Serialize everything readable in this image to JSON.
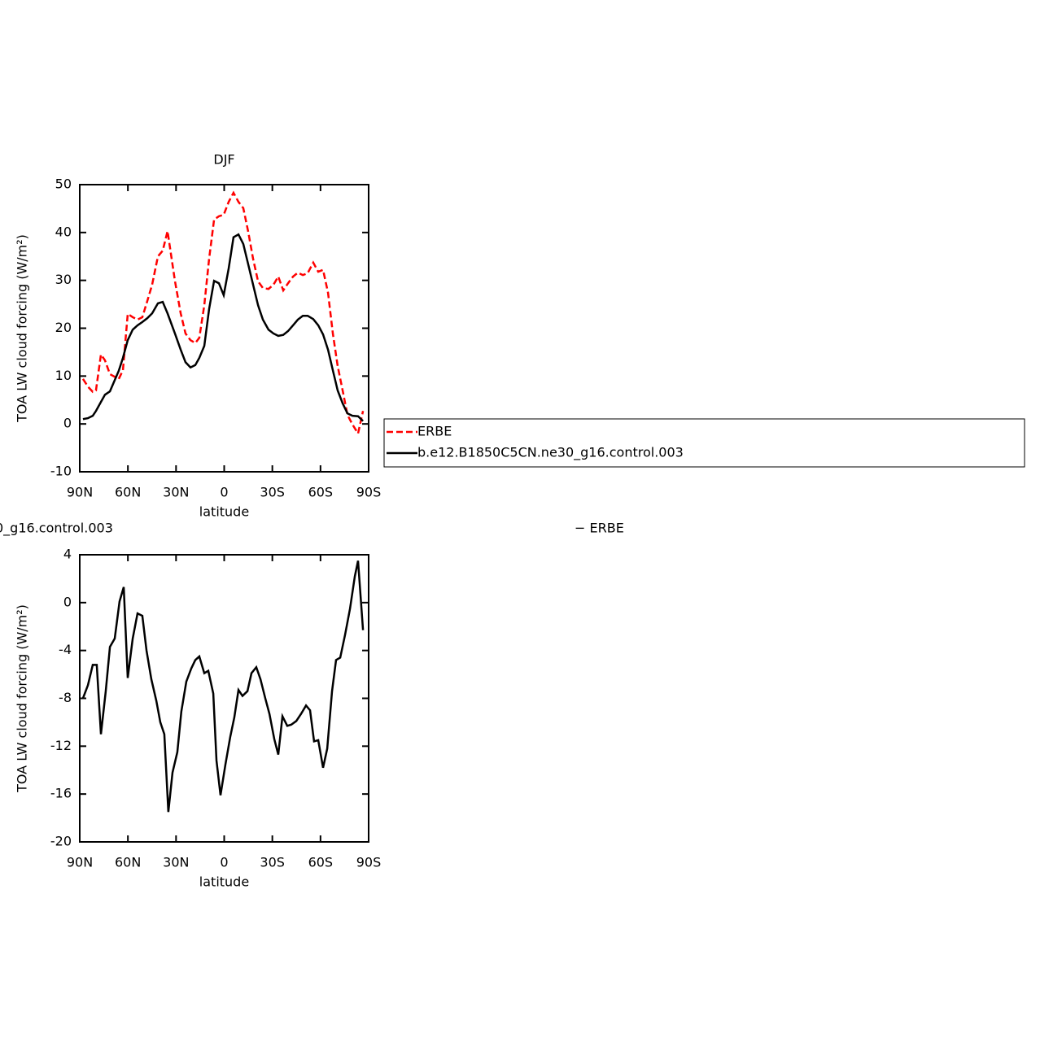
{
  "chart_data": [
    {
      "type": "line",
      "title": "DJF",
      "xlabel": "latitude",
      "ylabel": "TOA LW cloud forcing (W/m²)",
      "x": [
        88.0,
        84.9,
        81.9,
        79.9,
        76.8,
        74.3,
        71.2,
        65.7,
        63.1,
        60.1,
        57.0,
        54.0,
        51.0,
        47.9,
        44.9,
        41.3,
        38.3,
        35.3,
        30.7,
        27.1,
        24.1,
        21.0,
        18.0,
        15.5,
        12.4,
        9.4,
        6.3,
        3.3,
        0.3,
        -2.8,
        -5.8,
        -8.9,
        -11.9,
        -15.0,
        -18.0,
        -21.1,
        -24.1,
        -27.6,
        -30.7,
        -33.7,
        -36.8,
        -39.8,
        -42.9,
        -45.9,
        -49.0,
        -52.0,
        -55.5,
        -58.6,
        -61.6,
        -64.7,
        -67.7,
        -70.7,
        -73.8,
        -76.8,
        -79.9,
        -83.4,
        -86.5
      ],
      "series": [
        {
          "name": "ERBE",
          "color": "#ff0000",
          "dash": true,
          "values": [
            9.4,
            7.8,
            6.7,
            7.0,
            14.5,
            13.3,
            10.4,
            9.4,
            11.2,
            23.0,
            22.3,
            21.8,
            22.3,
            25.7,
            29.1,
            35.0,
            36.2,
            40.3,
            29.9,
            23.1,
            18.9,
            17.5,
            16.9,
            18.0,
            24.8,
            34.5,
            42.7,
            43.4,
            43.7,
            46.4,
            48.3,
            46.4,
            45.1,
            40.1,
            34.5,
            29.8,
            28.4,
            28.2,
            29.1,
            30.8,
            27.9,
            29.4,
            30.8,
            31.6,
            31.1,
            31.5,
            33.7,
            31.8,
            32.2,
            27.4,
            18.9,
            12.1,
            7.0,
            1.9,
            -0.1,
            -2.0,
            2.7
          ]
        },
        {
          "name": "b.e12.B1850C5CN.ne30_g16.control.003",
          "color": "#000000",
          "dash": false,
          "values": [
            1.0,
            1.2,
            1.7,
            2.7,
            4.6,
            6.1,
            6.8,
            11.1,
            13.8,
            17.5,
            19.7,
            20.6,
            21.3,
            22.1,
            23.1,
            25.2,
            25.5,
            23.1,
            18.9,
            15.5,
            12.9,
            11.8,
            12.3,
            13.8,
            16.3,
            24.0,
            29.9,
            29.4,
            26.9,
            32.5,
            39.0,
            39.6,
            37.6,
            33.3,
            29.1,
            24.8,
            21.8,
            19.7,
            18.9,
            18.4,
            18.6,
            19.4,
            20.6,
            21.8,
            22.6,
            22.6,
            21.9,
            20.6,
            18.7,
            15.5,
            11.2,
            7.0,
            4.3,
            2.2,
            1.7,
            1.6,
            0.6
          ]
        }
      ],
      "xlim": [
        90,
        -90
      ],
      "xticks": [
        {
          "value": 90,
          "label": "90N"
        },
        {
          "value": 60,
          "label": "60N"
        },
        {
          "value": 30,
          "label": "30N"
        },
        0,
        {
          "value": -30,
          "label": "30S"
        },
        {
          "value": -60,
          "label": "60S"
        },
        {
          "value": -90,
          "label": "90S"
        }
      ],
      "ylim": [
        -10,
        50
      ],
      "yticks": [
        -10,
        0,
        10,
        20,
        30,
        40,
        50
      ],
      "legend": "outside right"
    },
    {
      "type": "line",
      "title_parts": [
        "0_g16.control.003",
        "− ERBE"
      ],
      "xlabel": "latitude",
      "ylabel": "TOA LW cloud forcing (W/m²)",
      "x": [
        88.0,
        84.9,
        81.9,
        79.4,
        76.8,
        73.8,
        71.2,
        68.2,
        65.2,
        62.6,
        60.1,
        57.0,
        54.0,
        51.0,
        48.4,
        45.4,
        42.3,
        39.8,
        37.3,
        34.8,
        32.2,
        29.2,
        26.7,
        23.6,
        20.5,
        18.0,
        15.5,
        12.4,
        9.9,
        6.8,
        4.8,
        2.3,
        -0.8,
        -3.8,
        -6.3,
        -8.9,
        -11.4,
        -14.5,
        -17.0,
        -20.0,
        -22.6,
        -25.6,
        -28.2,
        -31.2,
        -33.7,
        -36.3,
        -39.3,
        -41.8,
        -44.9,
        -47.9,
        -51.0,
        -53.5,
        -56.0,
        -58.6,
        -61.6,
        -64.2,
        -67.2,
        -69.7,
        -72.3,
        -75.3,
        -78.4,
        -81.4,
        -83.4,
        -86.5
      ],
      "series": [
        {
          "color": "#000000",
          "dash": false,
          "values": [
            -8.0,
            -6.9,
            -5.2,
            -5.2,
            -11.0,
            -7.4,
            -3.7,
            -3.0,
            0.1,
            1.3,
            -6.3,
            -3.0,
            -0.9,
            -1.1,
            -4.0,
            -6.4,
            -8.2,
            -10.0,
            -11.0,
            -17.5,
            -14.2,
            -12.5,
            -9.1,
            -6.6,
            -5.5,
            -4.8,
            -4.5,
            -5.9,
            -5.7,
            -7.6,
            -13.2,
            -16.1,
            -13.5,
            -11.2,
            -9.6,
            -7.3,
            -7.8,
            -7.4,
            -5.9,
            -5.4,
            -6.4,
            -8.0,
            -9.3,
            -11.4,
            -12.7,
            -9.5,
            -10.3,
            -10.2,
            -9.9,
            -9.3,
            -8.6,
            -9.0,
            -11.6,
            -11.5,
            -13.8,
            -12.2,
            -7.4,
            -4.8,
            -4.6,
            -2.7,
            -0.5,
            2.2,
            3.5,
            -2.3
          ]
        }
      ],
      "xlim": [
        90,
        -90
      ],
      "xticks": [
        {
          "value": 90,
          "label": "90N"
        },
        {
          "value": 60,
          "label": "60N"
        },
        {
          "value": 30,
          "label": "30N"
        },
        0,
        {
          "value": -30,
          "label": "30S"
        },
        {
          "value": -60,
          "label": "60S"
        },
        {
          "value": -90,
          "label": "90S"
        }
      ],
      "ylim": [
        -20,
        4
      ],
      "yticks": [
        -20,
        -16,
        -12,
        -8,
        -4,
        0,
        4
      ]
    }
  ]
}
